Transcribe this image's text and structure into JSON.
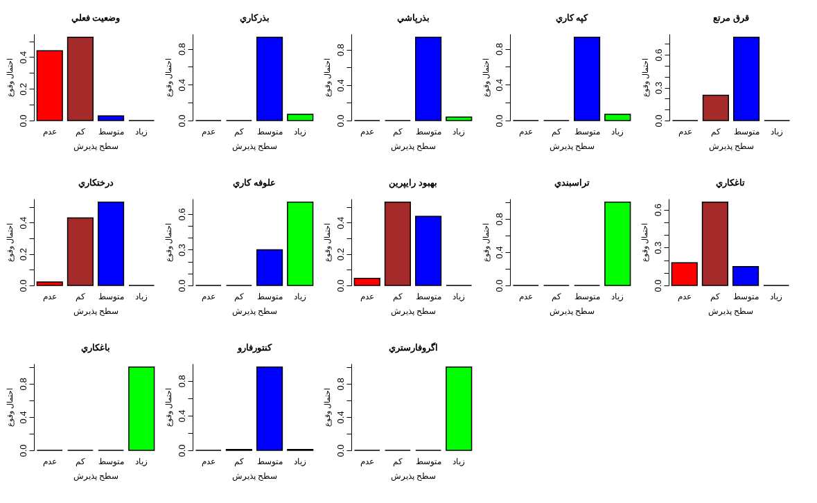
{
  "chart_data": [
    {
      "type": "bar",
      "title": "وضعيت فعلي",
      "xlabel": "سطح پذيرش",
      "ylabel": "احتمال وقوع",
      "categories": [
        "عدم",
        "كم",
        "متوسط",
        "زياد"
      ],
      "values": [
        0.44,
        0.525,
        0.03,
        0
      ],
      "colors": [
        "#ff0000",
        "#a52a2a",
        "#0000ff",
        "#000000"
      ],
      "ylim": [
        0,
        0.546
      ],
      "yticks": [
        {
          "value": 0,
          "label": "0.0"
        },
        {
          "value": 0.1,
          "label": null
        },
        {
          "value": 0.2,
          "label": "0.2"
        },
        {
          "value": 0.3,
          "label": null
        },
        {
          "value": 0.4,
          "label": "0.4"
        },
        {
          "value": 0.5,
          "label": null
        }
      ]
    },
    {
      "type": "bar",
      "title": "بذركاري",
      "xlabel": "سطح پذيرش",
      "ylabel": "احتمال وقوع",
      "categories": [
        "عدم",
        "كم",
        "متوسط",
        "زياد"
      ],
      "values": [
        0,
        0,
        0.93,
        0.07
      ],
      "colors": [
        "#000000",
        "#000000",
        "#0000ff",
        "#00ff00"
      ],
      "ylim": [
        0,
        0.967
      ],
      "yticks": [
        {
          "value": 0,
          "label": "0.0"
        },
        {
          "value": 0.2,
          "label": null
        },
        {
          "value": 0.4,
          "label": "0.4"
        },
        {
          "value": 0.6,
          "label": null
        },
        {
          "value": 0.8,
          "label": "0.8"
        }
      ]
    },
    {
      "type": "bar",
      "title": "بذرپاشي",
      "xlabel": "سطح پذيرش",
      "ylabel": "احتمال وقوع",
      "categories": [
        "عدم",
        "كم",
        "متوسط",
        "زياد"
      ],
      "values": [
        0,
        0,
        0.94,
        0.04
      ],
      "colors": [
        "#000000",
        "#000000",
        "#0000ff",
        "#00ff00"
      ],
      "ylim": [
        0,
        0.978
      ],
      "yticks": [
        {
          "value": 0,
          "label": "0.0"
        },
        {
          "value": 0.2,
          "label": null
        },
        {
          "value": 0.4,
          "label": "0.4"
        },
        {
          "value": 0.6,
          "label": null
        },
        {
          "value": 0.8,
          "label": "0.8"
        }
      ]
    },
    {
      "type": "bar",
      "title": "كپه كاري",
      "xlabel": "سطح پذيرش",
      "ylabel": "احتمال وقوع",
      "categories": [
        "عدم",
        "كم",
        "متوسط",
        "زياد"
      ],
      "values": [
        0,
        0,
        0.93,
        0.07
      ],
      "colors": [
        "#000000",
        "#000000",
        "#0000ff",
        "#00ff00"
      ],
      "ylim": [
        0,
        0.967
      ],
      "yticks": [
        {
          "value": 0,
          "label": "0.0"
        },
        {
          "value": 0.2,
          "label": null
        },
        {
          "value": 0.4,
          "label": "0.4"
        },
        {
          "value": 0.6,
          "label": null
        },
        {
          "value": 0.8,
          "label": "0.8"
        }
      ]
    },
    {
      "type": "bar",
      "title": "قرق مرتع",
      "xlabel": "سطح پذيرش",
      "ylabel": "احتمال وقوع",
      "categories": [
        "عدم",
        "كم",
        "متوسط",
        "زياد"
      ],
      "values": [
        0,
        0.23,
        0.76,
        0
      ],
      "colors": [
        "#000000",
        "#a52a2a",
        "#0000ff",
        "#000000"
      ],
      "ylim": [
        0,
        0.79
      ],
      "yticks": [
        {
          "value": 0,
          "label": "0.0"
        },
        {
          "value": 0.1,
          "label": null
        },
        {
          "value": 0.2,
          "label": null
        },
        {
          "value": 0.3,
          "label": "0.3"
        },
        {
          "value": 0.4,
          "label": null
        },
        {
          "value": 0.5,
          "label": null
        },
        {
          "value": 0.6,
          "label": "0.6"
        },
        {
          "value": 0.7,
          "label": null
        }
      ]
    },
    {
      "type": "bar",
      "title": "درختكاري",
      "xlabel": "سطح پذيرش",
      "ylabel": "احتمال وقوع",
      "categories": [
        "عدم",
        "كم",
        "متوسط",
        "زياد"
      ],
      "values": [
        0.022,
        0.43,
        0.53,
        0
      ],
      "colors": [
        "#ff0000",
        "#a52a2a",
        "#0000ff",
        "#000000"
      ],
      "ylim": [
        0,
        0.551
      ],
      "yticks": [
        {
          "value": 0,
          "label": "0.0"
        },
        {
          "value": 0.1,
          "label": null
        },
        {
          "value": 0.2,
          "label": "0.2"
        },
        {
          "value": 0.3,
          "label": null
        },
        {
          "value": 0.4,
          "label": "0.4"
        },
        {
          "value": 0.5,
          "label": null
        }
      ]
    },
    {
      "type": "bar",
      "title": "علوفه كاري",
      "xlabel": "سطح پذيرش",
      "ylabel": "احتمال وقوع",
      "categories": [
        "عدم",
        "كم",
        "متوسط",
        "زياد"
      ],
      "values": [
        0,
        0,
        0.3,
        0.7
      ],
      "colors": [
        "#000000",
        "#000000",
        "#0000ff",
        "#00ff00"
      ],
      "ylim": [
        0,
        0.728
      ],
      "yticks": [
        {
          "value": 0,
          "label": "0.0"
        },
        {
          "value": 0.1,
          "label": null
        },
        {
          "value": 0.2,
          "label": null
        },
        {
          "value": 0.3,
          "label": "0.3"
        },
        {
          "value": 0.4,
          "label": null
        },
        {
          "value": 0.5,
          "label": null
        },
        {
          "value": 0.6,
          "label": "0.6"
        }
      ]
    },
    {
      "type": "bar",
      "title": "بهبود رايپرين",
      "xlabel": "سطح پذيرش",
      "ylabel": "احتمال وقوع",
      "categories": [
        "عدم",
        "كم",
        "متوسط",
        "زياد"
      ],
      "values": [
        0.045,
        0.53,
        0.44,
        0
      ],
      "colors": [
        "#ff0000",
        "#a52a2a",
        "#0000ff",
        "#000000"
      ],
      "ylim": [
        0,
        0.551
      ],
      "yticks": [
        {
          "value": 0,
          "label": "0.0"
        },
        {
          "value": 0.1,
          "label": null
        },
        {
          "value": 0.2,
          "label": "0.2"
        },
        {
          "value": 0.3,
          "label": null
        },
        {
          "value": 0.4,
          "label": "0.4"
        },
        {
          "value": 0.5,
          "label": null
        }
      ]
    },
    {
      "type": "bar",
      "title": "تراسبندي",
      "xlabel": "سطح پذيرش",
      "ylabel": "احتمال وقوع",
      "categories": [
        "عدم",
        "كم",
        "متوسط",
        "زياد"
      ],
      "values": [
        0,
        0,
        0,
        1.0
      ],
      "colors": [
        "#000000",
        "#000000",
        "#000000",
        "#00ff00"
      ],
      "ylim": [
        0,
        1.04
      ],
      "yticks": [
        {
          "value": 0,
          "label": "0.0"
        },
        {
          "value": 0.2,
          "label": null
        },
        {
          "value": 0.4,
          "label": "0.4"
        },
        {
          "value": 0.6,
          "label": null
        },
        {
          "value": 0.8,
          "label": "0.8"
        },
        {
          "value": 1.0,
          "label": null
        }
      ]
    },
    {
      "type": "bar",
      "title": "تاغكاري",
      "xlabel": "سطح پذيرش",
      "ylabel": "احتمال وقوع",
      "categories": [
        "عدم",
        "كم",
        "متوسط",
        "زياد"
      ],
      "values": [
        0.18,
        0.66,
        0.15,
        0
      ],
      "colors": [
        "#ff0000",
        "#a52a2a",
        "#0000ff",
        "#000000"
      ],
      "ylim": [
        0,
        0.686
      ],
      "yticks": [
        {
          "value": 0,
          "label": "0.0"
        },
        {
          "value": 0.1,
          "label": null
        },
        {
          "value": 0.2,
          "label": null
        },
        {
          "value": 0.3,
          "label": "0.3"
        },
        {
          "value": 0.4,
          "label": null
        },
        {
          "value": 0.5,
          "label": null
        },
        {
          "value": 0.6,
          "label": "0.6"
        }
      ]
    },
    {
      "type": "bar",
      "title": "باغكاري",
      "xlabel": "سطح پذيرش",
      "ylabel": "احتمال وقوع",
      "categories": [
        "عدم",
        "كم",
        "متوسط",
        "زياد"
      ],
      "values": [
        0,
        0,
        0,
        1.0
      ],
      "colors": [
        "#000000",
        "#000000",
        "#000000",
        "#00ff00"
      ],
      "ylim": [
        0,
        1.04
      ],
      "yticks": [
        {
          "value": 0,
          "label": "0.0"
        },
        {
          "value": 0.2,
          "label": null
        },
        {
          "value": 0.4,
          "label": "0.4"
        },
        {
          "value": 0.6,
          "label": null
        },
        {
          "value": 0.8,
          "label": "0.8"
        },
        {
          "value": 1.0,
          "label": null
        }
      ]
    },
    {
      "type": "bar",
      "title": "كنتورفارو",
      "xlabel": "سطح پذيرش",
      "ylabel": "احتمال وقوع",
      "categories": [
        "عدم",
        "كم",
        "متوسط",
        "زياد"
      ],
      "values": [
        0,
        0.01,
        0.96,
        0.01
      ],
      "colors": [
        "#000000",
        "#a52a2a",
        "#0000ff",
        "#00ff00"
      ],
      "ylim": [
        0,
        0.998
      ],
      "yticks": [
        {
          "value": 0,
          "label": "0.0"
        },
        {
          "value": 0.2,
          "label": null
        },
        {
          "value": 0.4,
          "label": "0.4"
        },
        {
          "value": 0.6,
          "label": null
        },
        {
          "value": 0.8,
          "label": "0.8"
        }
      ]
    },
    {
      "type": "bar",
      "title": "اگروفارستري",
      "xlabel": "سطح پذيرش",
      "ylabel": "احتمال وقوع",
      "categories": [
        "عدم",
        "كم",
        "متوسط",
        "زياد"
      ],
      "values": [
        0,
        0,
        0,
        1.0
      ],
      "colors": [
        "#000000",
        "#000000",
        "#000000",
        "#00ff00"
      ],
      "ylim": [
        0,
        1.04
      ],
      "yticks": [
        {
          "value": 0,
          "label": "0.0"
        },
        {
          "value": 0.2,
          "label": null
        },
        {
          "value": 0.4,
          "label": "0.4"
        },
        {
          "value": 0.6,
          "label": null
        },
        {
          "value": 0.8,
          "label": "0.8"
        },
        {
          "value": 1.0,
          "label": null
        }
      ]
    }
  ]
}
